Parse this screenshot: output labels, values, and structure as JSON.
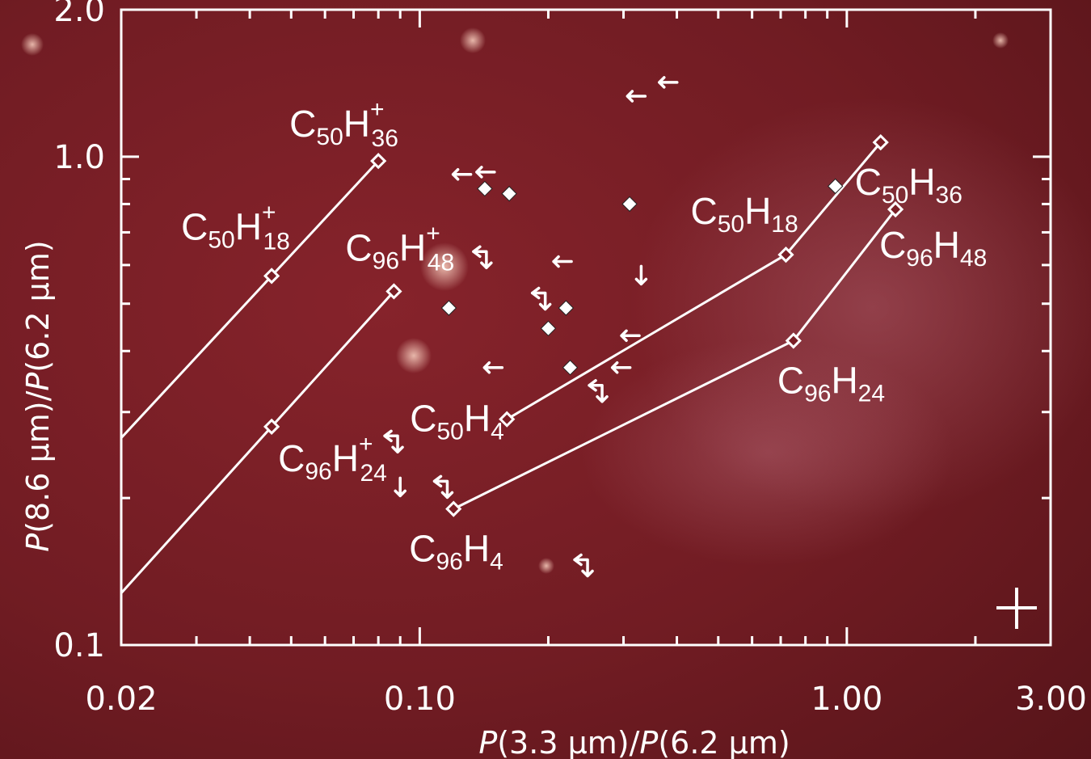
{
  "chart_data": {
    "type": "scatter",
    "x_scale": "log",
    "y_scale": "log",
    "xlim": [
      0.02,
      3.0
    ],
    "ylim": [
      0.1,
      2.0
    ],
    "xticks": [
      {
        "value": 0.02,
        "label": "0.02"
      },
      {
        "value": 0.1,
        "label": "0.10"
      },
      {
        "value": 1.0,
        "label": "1.00"
      },
      {
        "value": 3.0,
        "label": "3.00"
      }
    ],
    "yticks": [
      {
        "value": 0.1,
        "label": "0.1"
      },
      {
        "value": 1.0,
        "label": "1.0"
      },
      {
        "value": 2.0,
        "label": "2.0"
      }
    ],
    "xlabel": {
      "p1": "P",
      "m1": "(3.3 μm)/",
      "p2": "P",
      "m2": "(6.2 μm)"
    },
    "ylabel": {
      "p1": "P",
      "m1": "(8.6 μm)/",
      "p2": "P",
      "m2": "(6.2 μm)"
    },
    "grid": false,
    "model_lines": [
      {
        "points": [
          [
            0.045,
            0.57
          ],
          [
            0.08,
            0.98
          ]
        ]
      },
      {
        "points": [
          [
            0.045,
            0.28
          ],
          [
            0.087,
            0.53
          ]
        ]
      },
      {
        "points": [
          [
            0.16,
            0.29
          ],
          [
            0.72,
            0.63
          ],
          [
            1.2,
            1.07
          ]
        ]
      },
      {
        "points": [
          [
            0.12,
            0.19
          ],
          [
            0.75,
            0.42
          ],
          [
            1.3,
            0.78
          ]
        ]
      }
    ],
    "model_points": [
      {
        "x": 0.08,
        "y": 0.98,
        "label": {
          "base": "C",
          "n1": "50",
          "mid": "H",
          "n2": "36",
          "sup": "+"
        }
      },
      {
        "x": 0.045,
        "y": 0.57,
        "label": {
          "base": "C",
          "n1": "50",
          "mid": "H",
          "n2": "18",
          "sup": "+"
        }
      },
      {
        "x": 0.087,
        "y": 0.53,
        "label": {
          "base": "C",
          "n1": "96",
          "mid": "H",
          "n2": "48",
          "sup": "+"
        }
      },
      {
        "x": 0.045,
        "y": 0.28,
        "label": {
          "base": "C",
          "n1": "96",
          "mid": "H",
          "n2": "24",
          "sup": "+"
        }
      },
      {
        "x": 1.2,
        "y": 1.07,
        "label": {
          "base": "C",
          "n1": "50",
          "mid": "H",
          "n2": "36",
          "sup": ""
        }
      },
      {
        "x": 0.72,
        "y": 0.63,
        "label": {
          "base": "C",
          "n1": "50",
          "mid": "H",
          "n2": "18",
          "sup": ""
        }
      },
      {
        "x": 0.16,
        "y": 0.29,
        "label": {
          "base": "C",
          "n1": "50",
          "mid": "H",
          "n2": "4",
          "sup": ""
        }
      },
      {
        "x": 1.3,
        "y": 0.78,
        "label": {
          "base": "C",
          "n1": "96",
          "mid": "H",
          "n2": "48",
          "sup": ""
        }
      },
      {
        "x": 0.75,
        "y": 0.42,
        "label": {
          "base": "C",
          "n1": "96",
          "mid": "H",
          "n2": "24",
          "sup": ""
        }
      },
      {
        "x": 0.12,
        "y": 0.19,
        "label": {
          "base": "C",
          "n1": "96",
          "mid": "H",
          "n2": "4",
          "sup": ""
        }
      }
    ],
    "observations": [
      {
        "x": 0.94,
        "y": 0.87,
        "kind": "point"
      },
      {
        "x": 0.142,
        "y": 0.86,
        "kind": "point"
      },
      {
        "x": 0.162,
        "y": 0.84,
        "kind": "point"
      },
      {
        "x": 0.31,
        "y": 0.8,
        "kind": "point"
      },
      {
        "x": 0.117,
        "y": 0.49,
        "kind": "point"
      },
      {
        "x": 0.22,
        "y": 0.49,
        "kind": "point"
      },
      {
        "x": 0.2,
        "y": 0.445,
        "kind": "point"
      },
      {
        "x": 0.225,
        "y": 0.37,
        "kind": "point"
      },
      {
        "x": 0.38,
        "y": 1.42,
        "kind": "upper-x"
      },
      {
        "x": 0.32,
        "y": 1.33,
        "kind": "upper-x"
      },
      {
        "x": 0.142,
        "y": 0.93,
        "kind": "upper-x"
      },
      {
        "x": 0.125,
        "y": 0.92,
        "kind": "upper-x"
      },
      {
        "x": 0.215,
        "y": 0.61,
        "kind": "upper-x"
      },
      {
        "x": 0.148,
        "y": 0.37,
        "kind": "upper-x"
      },
      {
        "x": 0.295,
        "y": 0.37,
        "kind": "upper-x"
      },
      {
        "x": 0.31,
        "y": 0.43,
        "kind": "upper-x"
      },
      {
        "x": 0.33,
        "y": 0.57,
        "kind": "upper-y"
      },
      {
        "x": 0.09,
        "y": 0.21,
        "kind": "upper-y"
      },
      {
        "x": 0.142,
        "y": 0.62,
        "kind": "upper-both"
      },
      {
        "x": 0.195,
        "y": 0.51,
        "kind": "upper-both"
      },
      {
        "x": 0.265,
        "y": 0.33,
        "kind": "upper-both"
      },
      {
        "x": 0.088,
        "y": 0.26,
        "kind": "upper-both"
      },
      {
        "x": 0.115,
        "y": 0.21,
        "kind": "upper-both"
      },
      {
        "x": 0.245,
        "y": 0.145,
        "kind": "upper-both"
      }
    ],
    "error_bar": {
      "symbol": "+"
    }
  }
}
